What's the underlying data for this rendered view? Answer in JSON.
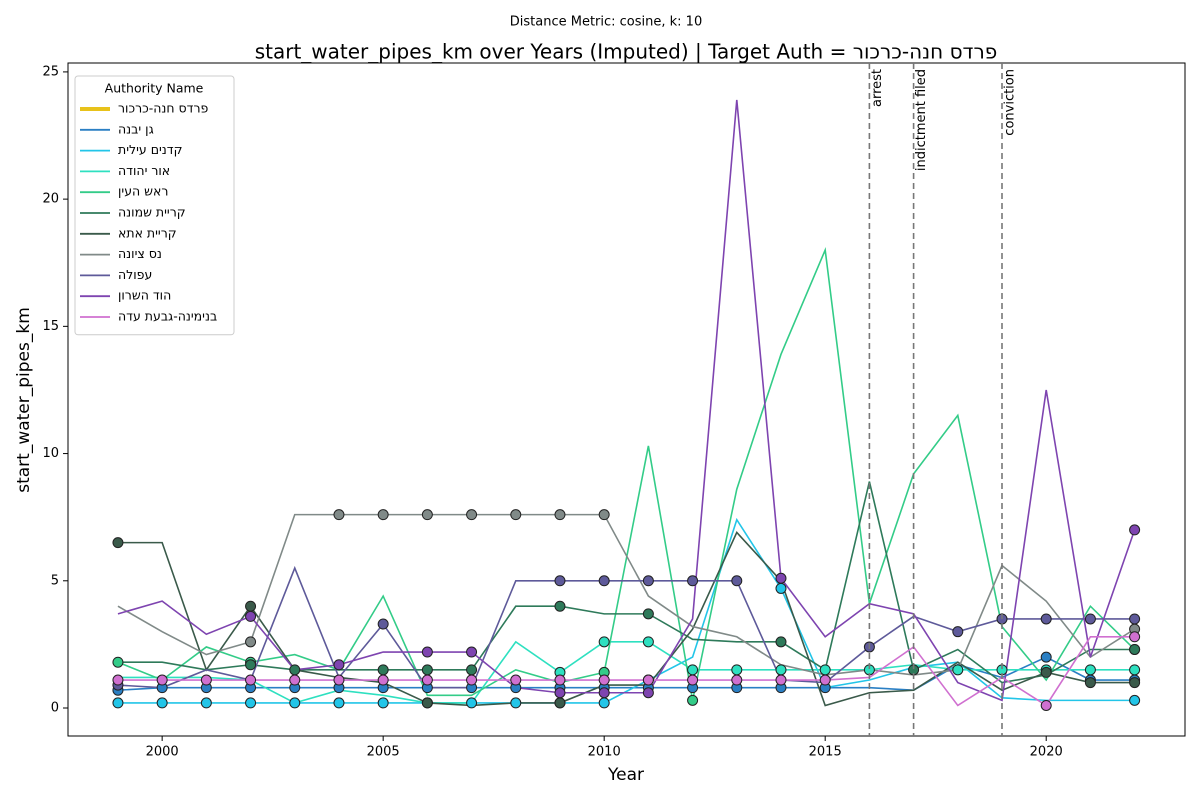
{
  "chart_data": {
    "type": "line",
    "subtitle": "Distance Metric: cosine, k: 10",
    "title": "start_water_pipes_km over Years (Imputed) | Target Auth = פרדס חנה-כרכור",
    "x_label": "Year",
    "y_label": "start_water_pipes_km",
    "legend_title": "Authority Name",
    "legend_position": "upper left",
    "x": [
      1999,
      2000,
      2001,
      2002,
      2003,
      2004,
      2005,
      2006,
      2007,
      2008,
      2009,
      2010,
      2011,
      2012,
      2013,
      2014,
      2015,
      2016,
      2017,
      2018,
      2019,
      2020,
      2021,
      2022
    ],
    "xlim": [
      1997.87,
      2023.14
    ],
    "xticks": [
      2000,
      2005,
      2010,
      2015,
      2020
    ],
    "ylim": [
      -1.1,
      25.35
    ],
    "yticks": [
      0,
      5,
      10,
      15,
      20,
      25
    ],
    "annotations": [
      {
        "x": 2016,
        "label": "arrest"
      },
      {
        "x": 2017,
        "label": "indictment filed"
      },
      {
        "x": 2019,
        "label": "conviction"
      }
    ],
    "series": [
      {
        "name": "פרדס חנה-כרכור",
        "color": "#e8c21a",
        "target": true,
        "values": [
          null,
          null,
          null,
          null,
          null,
          null,
          null,
          null,
          null,
          null,
          null,
          null,
          null,
          null,
          null,
          null,
          null,
          null,
          null,
          null,
          null,
          null,
          null,
          null
        ],
        "imputed": [
          false,
          false,
          false,
          false,
          false,
          false,
          false,
          false,
          false,
          false,
          false,
          false,
          false,
          false,
          false,
          false,
          false,
          false,
          false,
          false,
          false,
          false,
          false,
          false
        ]
      },
      {
        "name": "גן יבנה",
        "color": "#2a7fc4",
        "values": [
          0.7,
          0.8,
          0.8,
          0.8,
          0.8,
          0.8,
          0.8,
          0.8,
          0.8,
          0.8,
          0.8,
          0.8,
          0.8,
          0.8,
          0.8,
          0.8,
          0.8,
          0.8,
          0.7,
          1.7,
          1.2,
          2.0,
          1.1,
          1.1
        ],
        "imputed": [
          true,
          true,
          true,
          true,
          true,
          true,
          true,
          true,
          true,
          true,
          true,
          true,
          true,
          true,
          true,
          true,
          true,
          false,
          false,
          false,
          false,
          true,
          true,
          true
        ]
      },
      {
        "name": "קדנים עילית",
        "color": "#22c5e8",
        "values": [
          0.2,
          0.2,
          0.2,
          0.2,
          0.2,
          0.2,
          0.2,
          0.2,
          0.2,
          0.2,
          0.2,
          0.2,
          1.1,
          2.0,
          7.4,
          4.7,
          0.8,
          1.1,
          1.6,
          1.8,
          0.4,
          0.3,
          0.3,
          0.3
        ],
        "imputed": [
          true,
          true,
          true,
          true,
          true,
          true,
          true,
          true,
          true,
          true,
          true,
          true,
          true,
          false,
          false,
          true,
          false,
          false,
          false,
          false,
          false,
          false,
          false,
          true
        ]
      },
      {
        "name": "אור יהודה",
        "color": "#2ee0c0",
        "values": [
          1.2,
          1.2,
          1.2,
          1.1,
          0.2,
          0.7,
          0.5,
          0.2,
          0.2,
          2.6,
          1.4,
          2.6,
          2.6,
          1.5,
          1.5,
          1.5,
          1.5,
          1.5,
          1.7,
          1.5,
          1.5,
          1.5,
          1.5,
          1.5
        ],
        "imputed": [
          false,
          false,
          false,
          false,
          false,
          false,
          false,
          false,
          false,
          false,
          true,
          true,
          true,
          true,
          true,
          true,
          true,
          true,
          false,
          true,
          true,
          true,
          true,
          true
        ]
      },
      {
        "name": "ראש העין",
        "color": "#33cc88",
        "values": [
          1.8,
          1.1,
          2.4,
          1.8,
          2.1,
          1.5,
          4.4,
          0.5,
          0.5,
          1.5,
          1.0,
          1.4,
          10.3,
          0.3,
          8.6,
          13.9,
          18.0,
          4.1,
          9.2,
          11.5,
          3.2,
          1.1,
          4.0,
          2.3
        ],
        "imputed": [
          true,
          false,
          false,
          true,
          false,
          false,
          false,
          false,
          false,
          false,
          false,
          true,
          false,
          true,
          false,
          false,
          false,
          false,
          false,
          false,
          false,
          false,
          false,
          true
        ]
      },
      {
        "name": "קריית שמונה",
        "color": "#2e7a5a",
        "values": [
          1.8,
          1.8,
          1.5,
          1.7,
          1.5,
          1.5,
          1.5,
          1.5,
          1.5,
          4.0,
          4.0,
          3.7,
          3.7,
          2.7,
          2.6,
          2.6,
          1.5,
          8.9,
          1.5,
          2.3,
          1.0,
          1.3,
          2.3,
          2.3
        ],
        "imputed": [
          false,
          false,
          false,
          true,
          true,
          false,
          true,
          true,
          true,
          false,
          true,
          false,
          true,
          false,
          false,
          true,
          false,
          false,
          true,
          false,
          false,
          false,
          false,
          true
        ]
      },
      {
        "name": "קריית אתא",
        "color": "#3a5a4a",
        "values": [
          6.5,
          6.5,
          1.5,
          4.0,
          1.5,
          1.2,
          1.0,
          0.2,
          0.1,
          0.2,
          0.2,
          0.9,
          0.9,
          3.1,
          6.9,
          5.0,
          0.1,
          0.6,
          0.7,
          1.8,
          0.7,
          1.4,
          1.0,
          1.0
        ],
        "imputed": [
          true,
          false,
          false,
          true,
          false,
          false,
          false,
          true,
          false,
          false,
          true,
          false,
          false,
          false,
          false,
          false,
          false,
          false,
          false,
          false,
          false,
          true,
          true,
          true
        ]
      },
      {
        "name": "נס ציונה",
        "color": "#808a88",
        "values": [
          4.0,
          3.0,
          2.1,
          2.6,
          7.6,
          7.6,
          7.6,
          7.6,
          7.6,
          7.6,
          7.6,
          7.6,
          4.4,
          3.2,
          2.8,
          1.7,
          1.3,
          1.5,
          1.3,
          1.5,
          5.6,
          4.2,
          2.0,
          3.1
        ],
        "imputed": [
          false,
          false,
          false,
          true,
          false,
          true,
          true,
          true,
          true,
          true,
          true,
          true,
          false,
          false,
          false,
          false,
          false,
          false,
          false,
          false,
          false,
          false,
          false,
          true
        ]
      },
      {
        "name": "עפולה",
        "color": "#5e5a9a",
        "values": [
          0.9,
          0.8,
          1.5,
          1.1,
          5.5,
          1.2,
          3.3,
          0.8,
          0.8,
          5.0,
          5.0,
          5.0,
          5.0,
          5.0,
          5.0,
          1.1,
          1.0,
          2.4,
          3.6,
          3.0,
          3.5,
          3.5,
          3.5,
          3.5
        ],
        "imputed": [
          true,
          false,
          false,
          false,
          false,
          false,
          true,
          false,
          false,
          false,
          true,
          true,
          true,
          true,
          true,
          false,
          false,
          true,
          false,
          true,
          true,
          true,
          true,
          true
        ]
      },
      {
        "name": "הוד השרון",
        "color": "#7e44b0",
        "values": [
          3.7,
          4.2,
          2.9,
          3.6,
          1.5,
          1.7,
          2.2,
          2.2,
          2.2,
          0.8,
          0.6,
          0.6,
          0.6,
          3.5,
          23.9,
          5.1,
          2.8,
          4.1,
          3.7,
          1.0,
          0.3,
          12.5,
          2.0,
          7.0
        ],
        "imputed": [
          false,
          false,
          false,
          true,
          false,
          true,
          false,
          true,
          true,
          false,
          true,
          true,
          true,
          false,
          false,
          true,
          false,
          false,
          false,
          false,
          false,
          false,
          false,
          true
        ]
      },
      {
        "name": "בנימינה-גבעת עדה",
        "color": "#d070d0",
        "values": [
          1.1,
          1.1,
          1.1,
          1.1,
          1.1,
          1.1,
          1.1,
          1.1,
          1.1,
          1.1,
          1.1,
          1.1,
          1.1,
          1.1,
          1.1,
          1.1,
          1.1,
          1.2,
          2.4,
          0.1,
          1.2,
          0.1,
          2.8,
          2.8
        ],
        "imputed": [
          true,
          true,
          true,
          true,
          true,
          true,
          true,
          true,
          true,
          true,
          true,
          true,
          true,
          true,
          true,
          true,
          true,
          false,
          false,
          false,
          false,
          true,
          false,
          true
        ]
      }
    ]
  }
}
